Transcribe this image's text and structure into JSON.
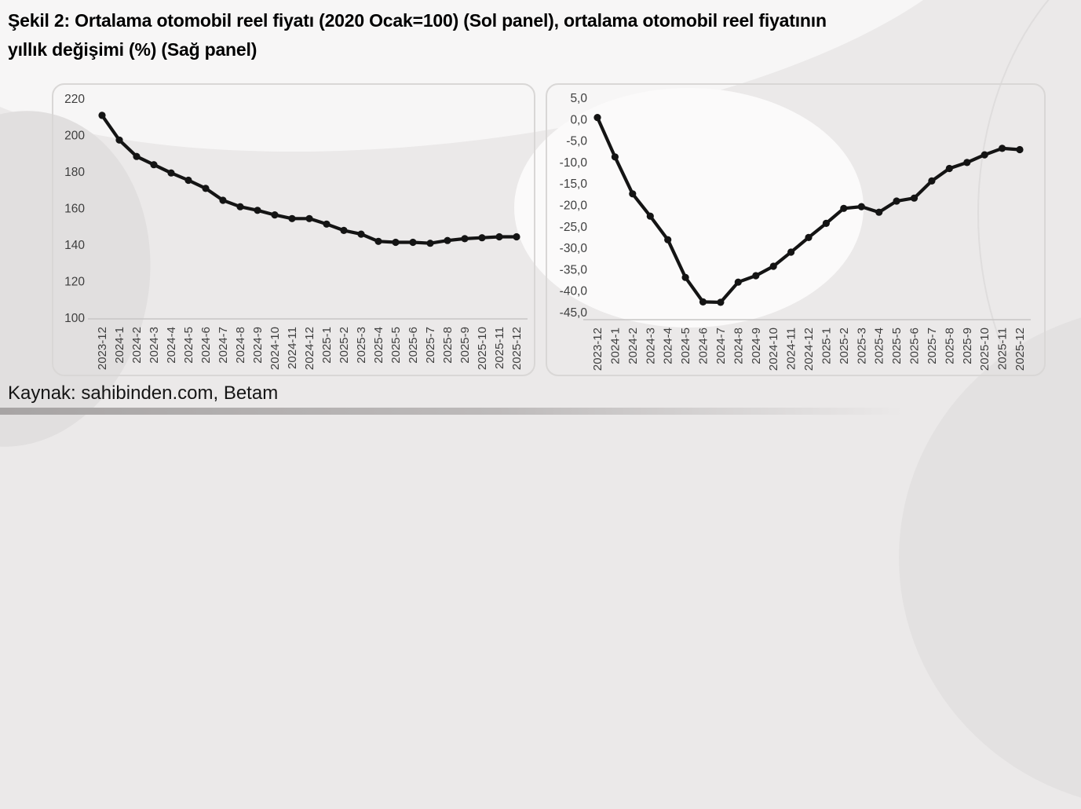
{
  "figure": {
    "title_lines": [
      "Şekil 2: Ortalama otomobil reel fiyatı (2020 Ocak=100) (Sol panel), ortalama otomobil reel fiyatının",
      "yıllık değişimi (%) (Sağ panel)"
    ],
    "source": "Kaynak: sahibinden.com, Betam"
  },
  "chart_data": [
    {
      "type": "line",
      "panel": "Sol panel",
      "title": "Ortalama otomobil reel fiyatı (2020 Ocak=100)",
      "categories": [
        "2023-12",
        "2024-1",
        "2024-2",
        "2024-3",
        "2024-4",
        "2024-5",
        "2024-6",
        "2024-7",
        "2024-8",
        "2024-9",
        "2024-10",
        "2024-11",
        "2024-12",
        "2025-1",
        "2025-2",
        "2025-3",
        "2025-4",
        "2025-5",
        "2025-6",
        "2025-7",
        "2025-8",
        "2025-9",
        "2025-10",
        "2025-11",
        "2025-12"
      ],
      "values": [
        211,
        197.5,
        188.5,
        184,
        179.5,
        175.5,
        171,
        164.5,
        161,
        159,
        156.5,
        154.5,
        154.5,
        151.5,
        148,
        146,
        142,
        141.5,
        141.5,
        141,
        142.5,
        143.5,
        144,
        144.5,
        144.5
      ],
      "ylim": [
        100,
        220
      ],
      "ytick_values": [
        220,
        200,
        180,
        160,
        140,
        120,
        100
      ],
      "ytick_labels": [
        "220",
        "200",
        "180",
        "160",
        "140",
        "120",
        "100"
      ],
      "grid": false,
      "legend": "none",
      "line_color": "#141414",
      "marker": "circle",
      "axis_text_color": "#3e3e3e",
      "axis_line_color": "#c8c6c5"
    },
    {
      "type": "line",
      "panel": "Sağ panel",
      "title": "Ortalama otomobil reel fiyatının yıllık değişimi (%)",
      "categories": [
        "2023-12",
        "2024-1",
        "2024-2",
        "2024-3",
        "2024-4",
        "2024-5",
        "2024-6",
        "2024-7",
        "2024-8",
        "2024-9",
        "2024-10",
        "2024-11",
        "2024-12",
        "2025-1",
        "2025-2",
        "2025-3",
        "2025-4",
        "2025-5",
        "2025-6",
        "2025-7",
        "2025-8",
        "2025-9",
        "2025-10",
        "2025-11",
        "2025-12"
      ],
      "values": [
        0.5,
        -8.7,
        -17.3,
        -22.5,
        -28.0,
        -36.8,
        -42.5,
        -42.6,
        -37.9,
        -36.4,
        -34.2,
        -30.9,
        -27.5,
        -24.2,
        -20.7,
        -20.3,
        -21.6,
        -19.0,
        -18.3,
        -14.3,
        -11.4,
        -10.0,
        -8.2,
        -6.7,
        -7.0
      ],
      "ylim": [
        -45,
        5
      ],
      "ytick_values": [
        5,
        0,
        -5,
        -10,
        -15,
        -20,
        -25,
        -30,
        -35,
        -40,
        -45
      ],
      "ytick_labels": [
        "5,0",
        "0,0",
        "-5,0",
        "-10,0",
        "-15,0",
        "-20,0",
        "-25,0",
        "-30,0",
        "-35,0",
        "-40,0",
        "-45,0"
      ],
      "grid": false,
      "legend": "none",
      "line_color": "#141414",
      "marker": "circle",
      "axis_text_color": "#3e3e3e",
      "axis_line_color": "#c8c6c5"
    }
  ]
}
